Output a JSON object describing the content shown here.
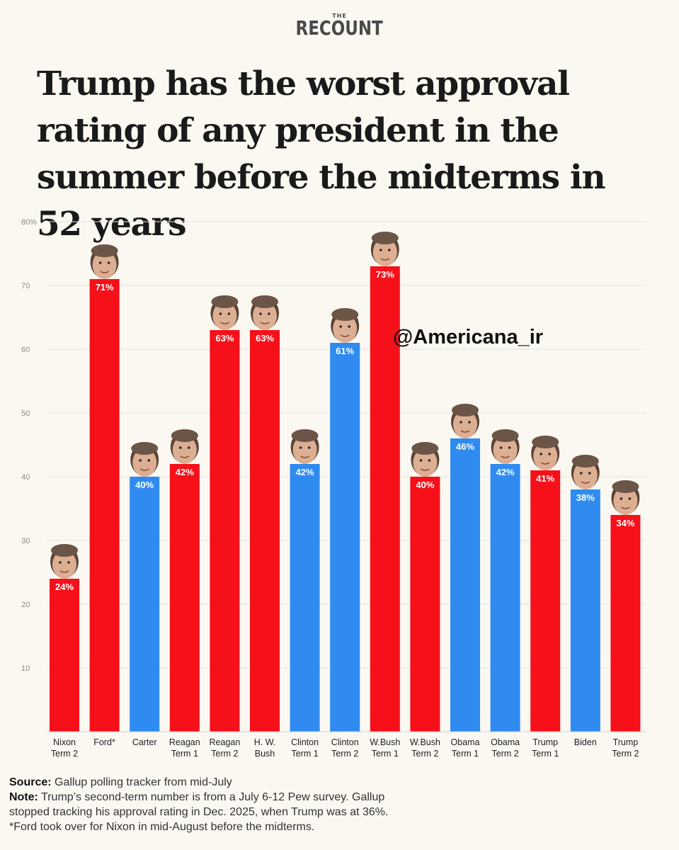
{
  "brand": {
    "the": "THE",
    "name": "RECOUNT"
  },
  "title": "Trump has the worst approval rating of any president in the summer before the midterms in 52 years",
  "watermark": "@Americana_ir",
  "colors": {
    "republican": "#f5101a",
    "democrat": "#2f8bf0",
    "grid": "#e2e2e2"
  },
  "chart_data": {
    "type": "bar",
    "ylim": [
      0,
      80
    ],
    "yticks": [
      "10",
      "20",
      "30",
      "40",
      "50",
      "60",
      "70",
      "80%"
    ],
    "grid": true,
    "bars": [
      {
        "label": [
          "Nixon",
          "Term 2"
        ],
        "value": 24,
        "party": "R",
        "value_label": "24%"
      },
      {
        "label": [
          "Ford*"
        ],
        "value": 71,
        "party": "R",
        "value_label": "71%"
      },
      {
        "label": [
          "Carter"
        ],
        "value": 40,
        "party": "D",
        "value_label": "40%"
      },
      {
        "label": [
          "Reagan",
          "Term 1"
        ],
        "value": 42,
        "party": "R",
        "value_label": "42%"
      },
      {
        "label": [
          "Reagan",
          "Term 2"
        ],
        "value": 63,
        "party": "R",
        "value_label": "63%"
      },
      {
        "label": [
          "H. W.",
          "Bush"
        ],
        "value": 63,
        "party": "R",
        "value_label": "63%"
      },
      {
        "label": [
          "Clinton",
          "Term 1"
        ],
        "value": 42,
        "party": "D",
        "value_label": "42%"
      },
      {
        "label": [
          "Clinton",
          "Term 2"
        ],
        "value": 61,
        "party": "D",
        "value_label": "61%"
      },
      {
        "label": [
          "W.Bush",
          "Term 1"
        ],
        "value": 73,
        "party": "R",
        "value_label": "73%"
      },
      {
        "label": [
          "W.Bush",
          "Term 2"
        ],
        "value": 40,
        "party": "R",
        "value_label": "40%"
      },
      {
        "label": [
          "Obama",
          "Term 1"
        ],
        "value": 46,
        "party": "D",
        "value_label": "46%"
      },
      {
        "label": [
          "Obama",
          "Term 2"
        ],
        "value": 42,
        "party": "D",
        "value_label": "42%"
      },
      {
        "label": [
          "Trump",
          "Term 1"
        ],
        "value": 41,
        "party": "R",
        "value_label": "41%"
      },
      {
        "label": [
          "Biden"
        ],
        "value": 38,
        "party": "D",
        "value_label": "38%"
      },
      {
        "label": [
          "Trump",
          "Term 2"
        ],
        "value": 34,
        "party": "R",
        "value_label": "34%"
      }
    ]
  },
  "footer": {
    "source_label": "Source:",
    "source_text": " Gallup polling tracker from mid-July",
    "note_label": "Note:",
    "note_line1": " Trump’s second-term number is from a July 6-12 Pew survey. Gallup",
    "note_line2": "stopped tracking his approval rating in Dec. 2025, when Trump was at 36%.",
    "footnote": "*Ford took over for Nixon in mid-August before the midterms."
  }
}
